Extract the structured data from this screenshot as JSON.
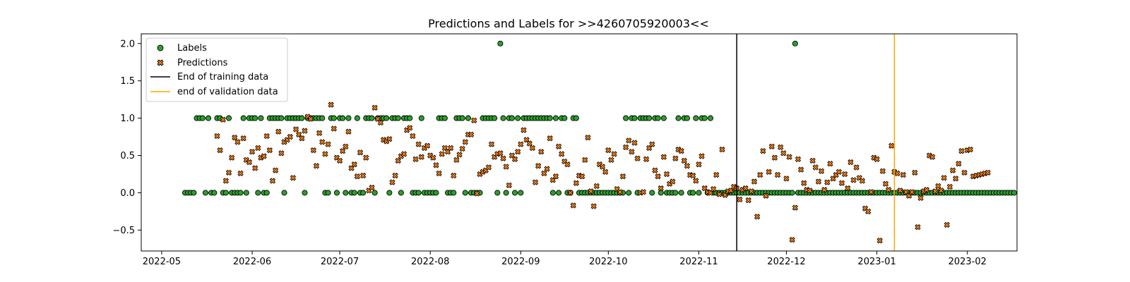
{
  "chart_data": {
    "type": "scatter",
    "title": "Predictions and Labels for >>4260705920003<<",
    "xlabel": "",
    "ylabel": "",
    "x_range": [
      "2022-04-24",
      "2023-02-18"
    ],
    "ylim": [
      -0.78,
      2.13
    ],
    "x_ticks": [
      {
        "date": "2022-05-01",
        "label": "2022-05"
      },
      {
        "date": "2022-06-01",
        "label": "2022-06"
      },
      {
        "date": "2022-07-01",
        "label": "2022-07"
      },
      {
        "date": "2022-08-01",
        "label": "2022-08"
      },
      {
        "date": "2022-09-01",
        "label": "2022-09"
      },
      {
        "date": "2022-10-01",
        "label": "2022-10"
      },
      {
        "date": "2022-11-01",
        "label": "2022-11"
      },
      {
        "date": "2022-12-01",
        "label": "2022-12"
      },
      {
        "date": "2023-01-01",
        "label": "2023-01"
      },
      {
        "date": "2023-02-01",
        "label": "2023-02"
      }
    ],
    "y_ticks": [
      {
        "value": 2.0,
        "label": "2.0"
      },
      {
        "value": 1.5,
        "label": "1.5"
      },
      {
        "value": 1.0,
        "label": "1.0"
      },
      {
        "value": 0.5,
        "label": "0.5"
      },
      {
        "value": 0.0,
        "label": "0.0"
      },
      {
        "value": -0.5,
        "label": "−0.5"
      }
    ],
    "grid": false,
    "legend_position": "upper-left",
    "series": [
      {
        "name": "Labels",
        "marker": "circle",
        "color": "#2ca02c",
        "edge": "#000000",
        "start": "2022-05-09",
        "values": [
          0,
          0,
          0,
          0,
          1,
          1,
          1,
          0,
          1,
          0,
          0,
          1,
          1,
          0,
          0,
          1,
          0,
          0,
          0,
          0,
          1,
          0,
          1,
          1,
          1,
          0,
          1,
          0,
          0,
          1,
          1,
          1,
          1,
          1,
          0,
          1,
          1,
          1,
          1,
          1,
          1,
          0,
          1,
          1,
          1,
          1,
          1,
          1,
          0,
          0,
          1,
          1,
          0,
          1,
          1,
          0,
          1,
          0,
          0,
          1,
          0,
          0,
          1,
          1,
          1,
          0,
          1,
          1,
          1,
          1,
          0,
          1,
          1,
          1,
          0,
          1,
          1,
          1,
          0,
          0,
          0,
          1,
          0,
          0,
          0,
          0,
          0,
          1,
          1,
          1,
          0,
          0,
          0,
          1,
          1,
          1,
          0,
          1,
          0,
          0,
          0,
          0,
          1,
          1,
          1,
          1,
          1,
          0,
          2,
          1,
          0,
          1,
          1,
          0,
          1,
          0,
          1,
          1,
          1,
          1,
          1,
          1,
          1,
          1,
          1,
          1,
          0,
          1,
          0,
          1,
          1,
          0,
          0,
          1,
          1,
          0,
          0,
          0,
          0,
          0,
          0,
          0,
          0,
          0,
          0,
          0,
          0,
          0,
          0,
          0,
          0,
          1,
          0,
          1,
          1,
          0,
          1,
          1,
          1,
          1,
          0,
          1,
          1,
          0,
          1,
          0,
          0,
          0,
          0,
          1,
          0,
          1,
          1,
          0,
          0,
          1,
          0,
          1,
          1,
          0,
          1,
          0,
          0,
          0,
          0,
          0,
          0,
          0,
          0,
          0,
          0,
          0,
          0,
          0,
          0,
          0,
          0,
          0,
          0,
          0,
          0,
          0,
          0,
          0,
          0,
          0,
          0,
          0,
          0,
          2,
          0,
          0,
          0,
          0,
          0,
          0,
          0,
          0,
          0,
          0,
          0,
          0,
          0,
          0,
          0,
          0,
          0,
          0,
          0,
          0,
          0,
          0,
          0,
          0,
          0,
          0,
          0,
          0,
          0,
          0,
          0,
          0,
          0,
          0,
          0,
          0,
          0,
          0,
          0,
          0,
          0,
          0,
          0,
          0,
          0,
          0,
          0,
          0,
          0,
          0,
          0,
          0,
          0,
          0,
          0,
          0,
          0,
          0,
          0,
          0,
          0,
          0,
          0,
          0,
          0,
          0,
          0,
          0,
          0,
          0,
          0,
          0,
          0,
          0,
          0
        ]
      },
      {
        "name": "Predictions",
        "marker": "x-filled",
        "color": "#ff7f0e",
        "edge": "#000000",
        "start": "2022-05-20",
        "values": [
          0.76,
          0.57,
          0.98,
          0.16,
          0.27,
          0.47,
          0.74,
          0.68,
          0.26,
          0.73,
          0.44,
          0.41,
          0.55,
          0.33,
          0.6,
          0.47,
          0.49,
          0.76,
          0.57,
          0.16,
          0.3,
          0.82,
          0.53,
          0.68,
          0.71,
          0.75,
          0.2,
          0.85,
          0.78,
          0.73,
          0.83,
          1.02,
          0.99,
          0.57,
          0.36,
          0.8,
          0.68,
          0.52,
          0.65,
          1.18,
          0.86,
          0.47,
          0.43,
          0.56,
          0.62,
          0.82,
          0.33,
          0.38,
          0.22,
          0.54,
          0.23,
          0.47,
          0.03,
          0.07,
          1.14,
          0.99,
          0.94,
          0.71,
          0.69,
          0.72,
          0.14,
          0.23,
          0.43,
          0.49,
          0.52,
          0.84,
          0.87,
          0.76,
          0.45,
          0.65,
          0.48,
          0.6,
          0.63,
          0.5,
          0.47,
          0.37,
          0.26,
          0.52,
          0.6,
          0.55,
          0.6,
          0.23,
          0.44,
          0.51,
          0.59,
          0.68,
          0.78,
          0.78,
          0.97,
          -0.01,
          0.25,
          0.28,
          0.3,
          0.34,
          0.65,
          0.48,
          0.52,
          0.53,
          0.46,
          0.35,
          0.1,
          0.5,
          0.45,
          0.55,
          0.65,
          0.84,
          0.71,
          0.66,
          0.6,
          0.14,
          0.36,
          0.55,
          0.26,
          0.32,
          0.73,
          0.17,
          0.22,
          0.62,
          0.52,
          0.42,
          0.38,
          0.0,
          -0.17,
          0.13,
          0.23,
          0.22,
          0.44,
          0.74,
          0.02,
          -0.18,
          0.09,
          0.38,
          0.35,
          0.28,
          0.57,
          0.44,
          0.52,
          0.05,
          0.01,
          0.22,
          0.61,
          0.7,
          0.55,
          0.67,
          0.46,
          0.0,
          0.01,
          0.45,
          0.6,
          0.65,
          0.3,
          0.22,
          0.06,
          0.48,
          0.25,
          0.12,
          0.15,
          0.46,
          0.58,
          0.56,
          0.43,
          0.36,
          0.24,
          0.23,
          0.16,
          0.38,
          0.49,
          0.06,
          0.01,
          0.0,
          0.05,
          0.24,
          -0.02,
          0.58,
          -0.03,
          0.02,
          0.03,
          0.08,
          0.06,
          -0.09,
          0.04,
          0.06,
          -0.1,
          0.02,
          0.15,
          -0.32,
          0.24,
          0.56,
          -0.04,
          0.28,
          0.62,
          0.47,
          0.24,
          0.61,
          0.53,
          0.19,
          0.48,
          -0.63,
          -0.2,
          0.45,
          0.31,
          0.13,
          0.04,
          0.03,
          0.43,
          0.34,
          0.15,
          0.29,
          0.04,
          0.14,
          0.39,
          0.19,
          0.24,
          0.28,
          0.13,
          0.25,
          0.06,
          0.41,
          0.17,
          0.34,
          0.2,
          0.16,
          -0.21,
          -0.25,
          0.01,
          0.47,
          0.45,
          -0.64,
          0.29,
          0.12,
          0.04,
          0.63,
          0.28,
          0.26,
          0.03,
          0.24,
          0.01,
          -0.04,
          0.01,
          0.27,
          -0.46,
          -0.07,
          0.02,
          0.04,
          0.5,
          0.48,
          0.02,
          0.09,
          0.03,
          0.2,
          -0.43,
          0.08,
          0.3,
          0.19,
          0.39,
          0.56,
          0.27,
          0.57,
          0.58,
          0.22,
          0.23,
          0.24,
          0.25,
          0.26,
          0.27
        ]
      }
    ],
    "vlines": [
      {
        "name": "End of training data",
        "date": "2022-11-14",
        "color": "#000000"
      },
      {
        "name": "end of validation data",
        "date": "2023-01-07",
        "color": "#ffa500"
      }
    ]
  }
}
